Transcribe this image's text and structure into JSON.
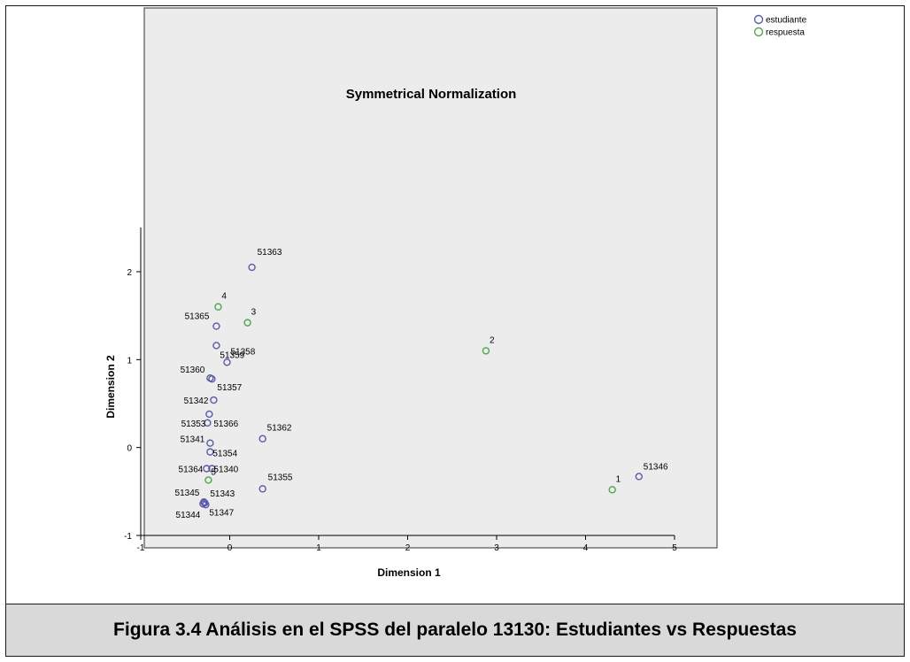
{
  "caption": "Figura 3.4 Análisis en el SPSS del paralelo 13130: Estudiantes vs Respuestas",
  "chart_data": {
    "type": "scatter",
    "title": "Symmetrical Normalization",
    "xlabel": "Dimension 1",
    "ylabel": "Dimension 2",
    "xlim": [
      -1,
      5
    ],
    "ylim": [
      -1,
      2.5
    ],
    "xticks": [
      "-1",
      "0",
      "1",
      "2",
      "3",
      "4",
      "5"
    ],
    "yticks": [
      "-1",
      "0",
      "1",
      "2"
    ],
    "legend_position": "top-right",
    "series": [
      {
        "name": "estudiante",
        "color": "#5a5aa8",
        "points": [
          {
            "x": 0.25,
            "y": 2.05,
            "label": "51363"
          },
          {
            "x": -0.15,
            "y": 1.38,
            "label": "51365"
          },
          {
            "x": -0.15,
            "y": 1.16,
            "label": "51359"
          },
          {
            "x": -0.03,
            "y": 0.97,
            "label": "51358"
          },
          {
            "x": -0.22,
            "y": 0.79,
            "label": "51360"
          },
          {
            "x": -0.2,
            "y": 0.78,
            "label": "51357"
          },
          {
            "x": -0.18,
            "y": 0.54,
            "label": "51342"
          },
          {
            "x": -0.23,
            "y": 0.38,
            "label": "51366"
          },
          {
            "x": -0.25,
            "y": 0.28,
            "label": "51353"
          },
          {
            "x": 0.37,
            "y": 0.1,
            "label": "51362"
          },
          {
            "x": -0.22,
            "y": 0.05,
            "label": "51341"
          },
          {
            "x": -0.22,
            "y": -0.05,
            "label": "51354"
          },
          {
            "x": -0.26,
            "y": -0.24,
            "label": "51364"
          },
          {
            "x": -0.2,
            "y": -0.24,
            "label": "51340"
          },
          {
            "x": 0.37,
            "y": -0.47,
            "label": "51355"
          },
          {
            "x": -0.28,
            "y": -0.63,
            "label": "51345"
          },
          {
            "x": -0.3,
            "y": -0.64,
            "label": "51343"
          },
          {
            "x": -0.27,
            "y": -0.65,
            "label": "51344"
          },
          {
            "x": -0.29,
            "y": -0.62,
            "label": "51347"
          },
          {
            "x": 4.6,
            "y": -0.33,
            "label": "51346"
          }
        ]
      },
      {
        "name": "respuesta",
        "color": "#4aa84a",
        "points": [
          {
            "x": -0.13,
            "y": 1.6,
            "label": "4"
          },
          {
            "x": 0.2,
            "y": 1.42,
            "label": "3"
          },
          {
            "x": 2.88,
            "y": 1.1,
            "label": "2"
          },
          {
            "x": -0.24,
            "y": -0.37,
            "label": "5"
          },
          {
            "x": 4.3,
            "y": -0.48,
            "label": "1"
          }
        ]
      }
    ]
  }
}
